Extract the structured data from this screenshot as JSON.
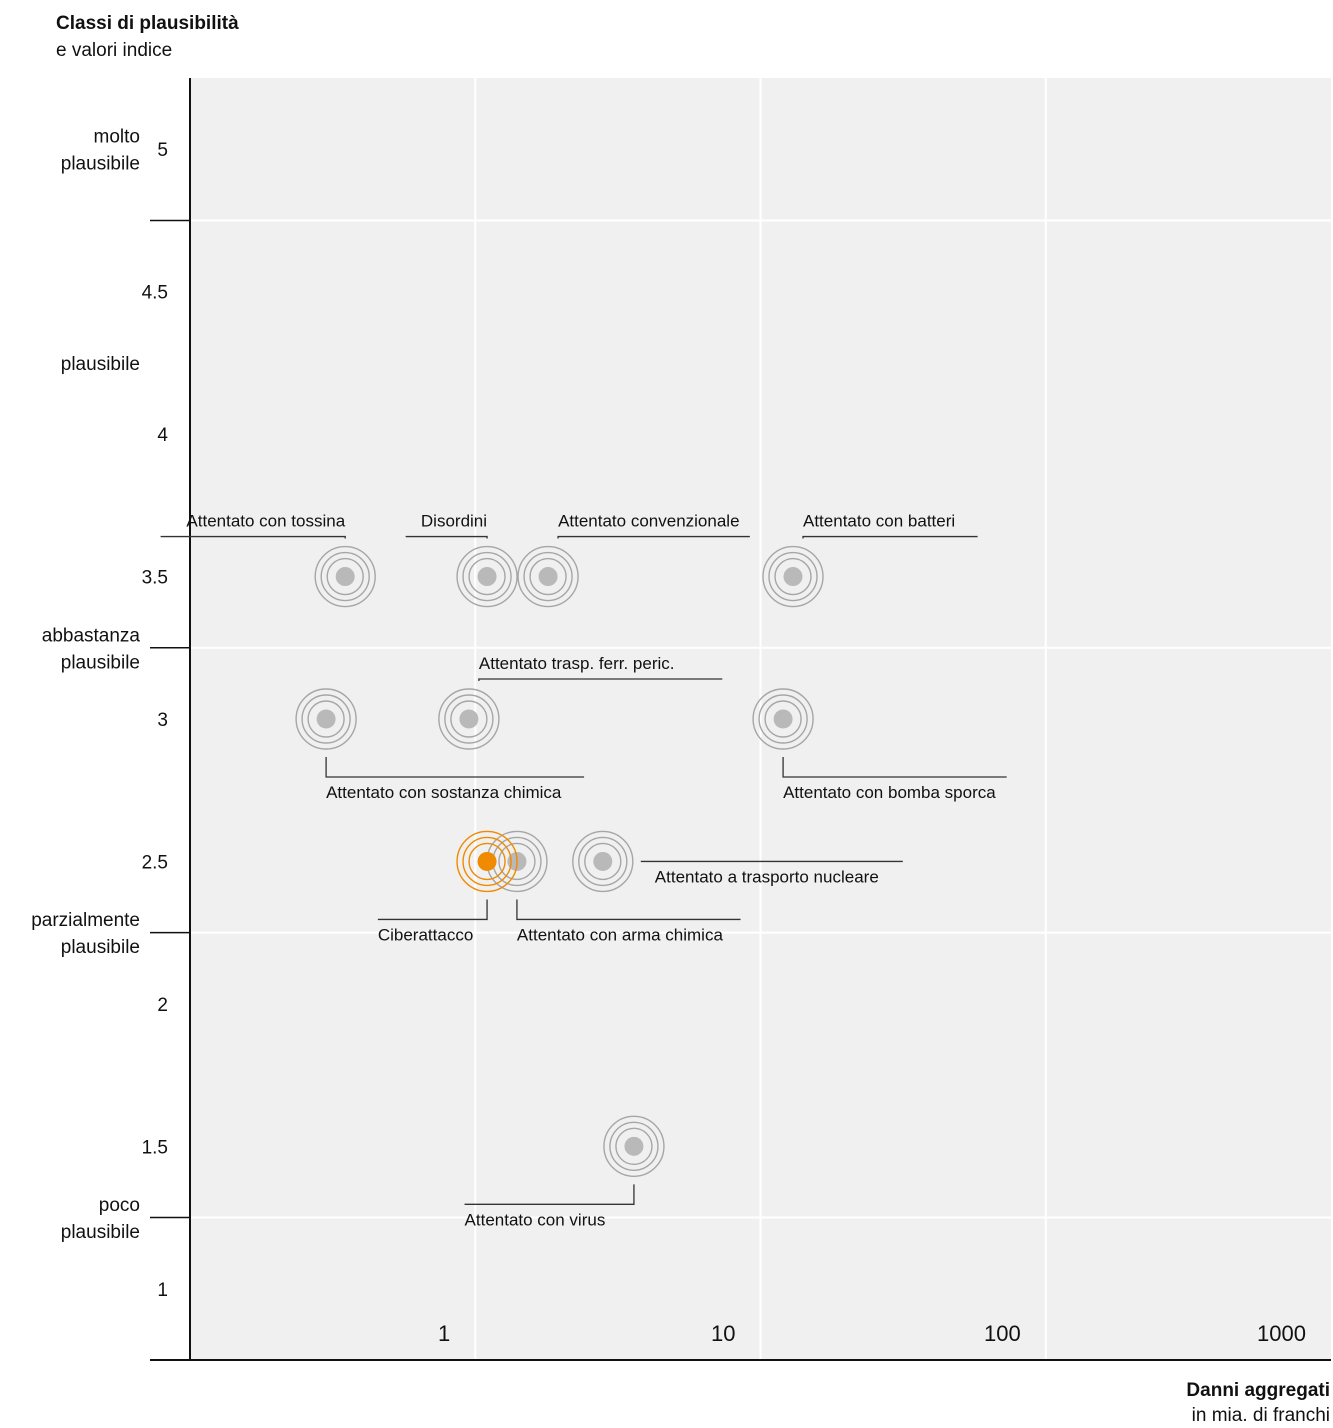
{
  "chart_data": {
    "type": "scatter",
    "y_title": "Classi di plausibilità",
    "y_subtitle": "e valori indice",
    "x_title": "Danni aggregati",
    "x_subtitle": "in mia. di franchi",
    "x_scale": "log",
    "xlim": [
      0.1,
      1000
    ],
    "ylim": [
      0.75,
      5.25
    ],
    "x_ticks": [
      {
        "value": 1,
        "label": "1"
      },
      {
        "value": 10,
        "label": "10"
      },
      {
        "value": 100,
        "label": "100"
      },
      {
        "value": 1000,
        "label": "1000"
      }
    ],
    "y_ticks": [
      {
        "value": 5,
        "label": "5"
      },
      {
        "value": 4.5,
        "label": "4.5"
      },
      {
        "value": 4,
        "label": "4"
      },
      {
        "value": 3.5,
        "label": "3.5"
      },
      {
        "value": 3,
        "label": "3"
      },
      {
        "value": 2.5,
        "label": "2.5"
      },
      {
        "value": 2,
        "label": "2"
      },
      {
        "value": 1.5,
        "label": "1.5"
      },
      {
        "value": 1,
        "label": "1"
      }
    ],
    "classes": [
      {
        "label": [
          "molto",
          "plausibile"
        ],
        "center": 5.0
      },
      {
        "label": [
          "plausibile"
        ],
        "center": 4.25
      },
      {
        "label": [
          "abbastanza",
          "plausibile"
        ],
        "center": 3.25
      },
      {
        "label": [
          "parzialmente",
          "plausibile"
        ],
        "center": 2.25
      },
      {
        "label": [
          "poco",
          "plausibile"
        ],
        "center": 1.25
      }
    ],
    "class_boundaries": [
      1.25,
      2.25,
      3.25,
      4.75
    ],
    "grid": true,
    "points": [
      {
        "label": "Attentato con tossina",
        "x": 0.35,
        "y": 3.5,
        "highlight": false,
        "callout": "above-left"
      },
      {
        "label": "Disordini",
        "x": 1.1,
        "y": 3.5,
        "highlight": false,
        "callout": "above-left"
      },
      {
        "label": "Attentato convenzionale",
        "x": 1.8,
        "y": 3.5,
        "highlight": false,
        "callout": "above-right"
      },
      {
        "label": "Attentato con batteri",
        "x": 13,
        "y": 3.5,
        "highlight": false,
        "callout": "above-right"
      },
      {
        "label": "Attentato trasp. ferr. peric.",
        "x": 0.95,
        "y": 3.0,
        "highlight": false,
        "callout": "above-right"
      },
      {
        "label": "Attentato con sostanza chimica",
        "x": 0.3,
        "y": 3.0,
        "highlight": false,
        "callout": "below-right"
      },
      {
        "label": "Attentato con bomba sporca",
        "x": 12,
        "y": 3.0,
        "highlight": false,
        "callout": "below-right"
      },
      {
        "label": "Attentato con arma chimica",
        "x": 1.4,
        "y": 2.5,
        "highlight": false,
        "callout": "below-right"
      },
      {
        "label": "Attentato a trasporto nucleare",
        "x": 2.8,
        "y": 2.5,
        "highlight": false,
        "callout": "right"
      },
      {
        "label": "Ciberattacco",
        "x": 1.1,
        "y": 2.5,
        "highlight": true,
        "callout": "below-left"
      },
      {
        "label": "Attentato con virus",
        "x": 3.6,
        "y": 1.5,
        "highlight": false,
        "callout": "below-left"
      }
    ],
    "colors": {
      "plot_background": "#eff0ef",
      "grid": "#ffffff",
      "point": "#b9b9b9",
      "ring": "#a6a6a6",
      "highlight": "#f08a00",
      "axis": "#111111",
      "leader": "#333333"
    }
  }
}
